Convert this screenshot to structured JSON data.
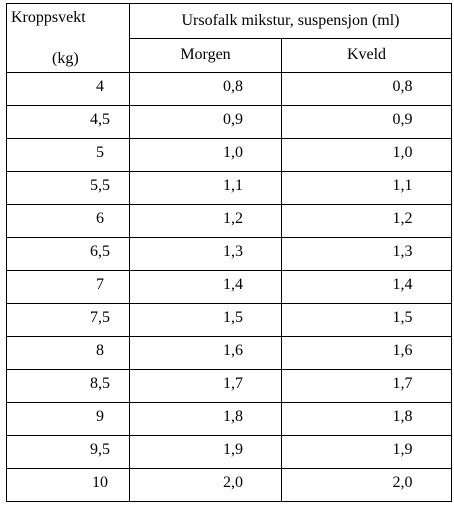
{
  "table": {
    "header": {
      "weight_label": "Kroppsvekt",
      "weight_unit": "(kg)",
      "suspension_label": "Ursofalk mikstur, suspensjon (ml)",
      "morning_label": "Morgen",
      "evening_label": "Kveld"
    },
    "rows": [
      {
        "weight": "4",
        "morning": "0,8",
        "evening": "0,8"
      },
      {
        "weight": "4,5",
        "morning": "0,9",
        "evening": "0,9"
      },
      {
        "weight": "5",
        "morning": "1,0",
        "evening": "1,0"
      },
      {
        "weight": "5,5",
        "morning": "1,1",
        "evening": "1,1"
      },
      {
        "weight": "6",
        "morning": "1,2",
        "evening": "1,2"
      },
      {
        "weight": "6,5",
        "morning": "1,3",
        "evening": "1,3"
      },
      {
        "weight": "7",
        "morning": "1,4",
        "evening": "1,4"
      },
      {
        "weight": "7,5",
        "morning": "1,5",
        "evening": "1,5"
      },
      {
        "weight": "8",
        "morning": "1,6",
        "evening": "1,6"
      },
      {
        "weight": "8,5",
        "morning": "1,7",
        "evening": "1,7"
      },
      {
        "weight": "9",
        "morning": "1,8",
        "evening": "1,8"
      },
      {
        "weight": "9,5",
        "morning": "1,9",
        "evening": "1,9"
      },
      {
        "weight": "10",
        "morning": "2,0",
        "evening": "2,0"
      }
    ]
  }
}
